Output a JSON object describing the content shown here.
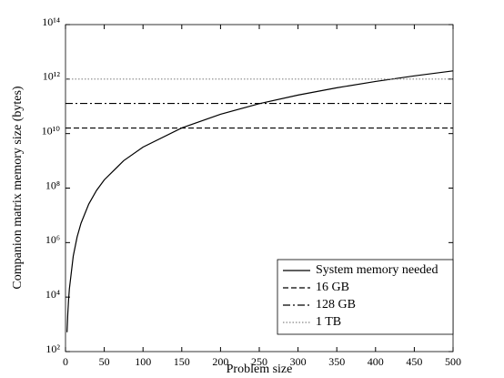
{
  "chart_data": {
    "type": "line",
    "xlabel": "Problem size",
    "ylabel": "Companion matrix memory size (bytes)",
    "xlim": [
      0,
      500
    ],
    "xticks": [
      0,
      50,
      100,
      150,
      200,
      250,
      300,
      350,
      400,
      450,
      500
    ],
    "ylim": [
      100,
      100000000000000
    ],
    "log_y": true,
    "yticks": [
      {
        "value": 100,
        "label": "10²"
      },
      {
        "value": 10000,
        "label": "10⁴"
      },
      {
        "value": 1000000,
        "label": "10⁶"
      },
      {
        "value": 100000000,
        "label": "10⁸"
      },
      {
        "value": 10000000000,
        "label": "10¹⁰"
      },
      {
        "value": 1000000000000,
        "label": "10¹²"
      },
      {
        "value": 100000000000000,
        "label": "10¹⁴"
      }
    ],
    "legend": "lower right",
    "series": [
      {
        "name": "System memory needed",
        "color": "#000000",
        "dash": "solid",
        "x": [
          2,
          3,
          4,
          5,
          10,
          15,
          20,
          30,
          40,
          50,
          75,
          100,
          150,
          200,
          250,
          300,
          350,
          400,
          450,
          500
        ],
        "values": [
          512,
          2592,
          8192,
          20000,
          320000,
          1620000,
          5120000,
          25920000,
          81920000,
          200000000,
          1012500000,
          3200000000,
          16200000000,
          51200000000,
          125000000000,
          259200000000,
          480200000000,
          819200000000,
          1312200000000,
          2000000000000
        ]
      },
      {
        "name": "16 GB",
        "color": "#000000",
        "dash": "dashed",
        "x": [
          0,
          500
        ],
        "values": [
          16000000000,
          16000000000
        ]
      },
      {
        "name": "128 GB",
        "color": "#000000",
        "dash": "dashdot",
        "x": [
          0,
          500
        ],
        "values": [
          128000000000,
          128000000000
        ]
      },
      {
        "name": "1 TB",
        "color": "#888888",
        "dash": "dotted",
        "x": [
          0,
          500
        ],
        "values": [
          1000000000000,
          1000000000000
        ]
      }
    ]
  }
}
